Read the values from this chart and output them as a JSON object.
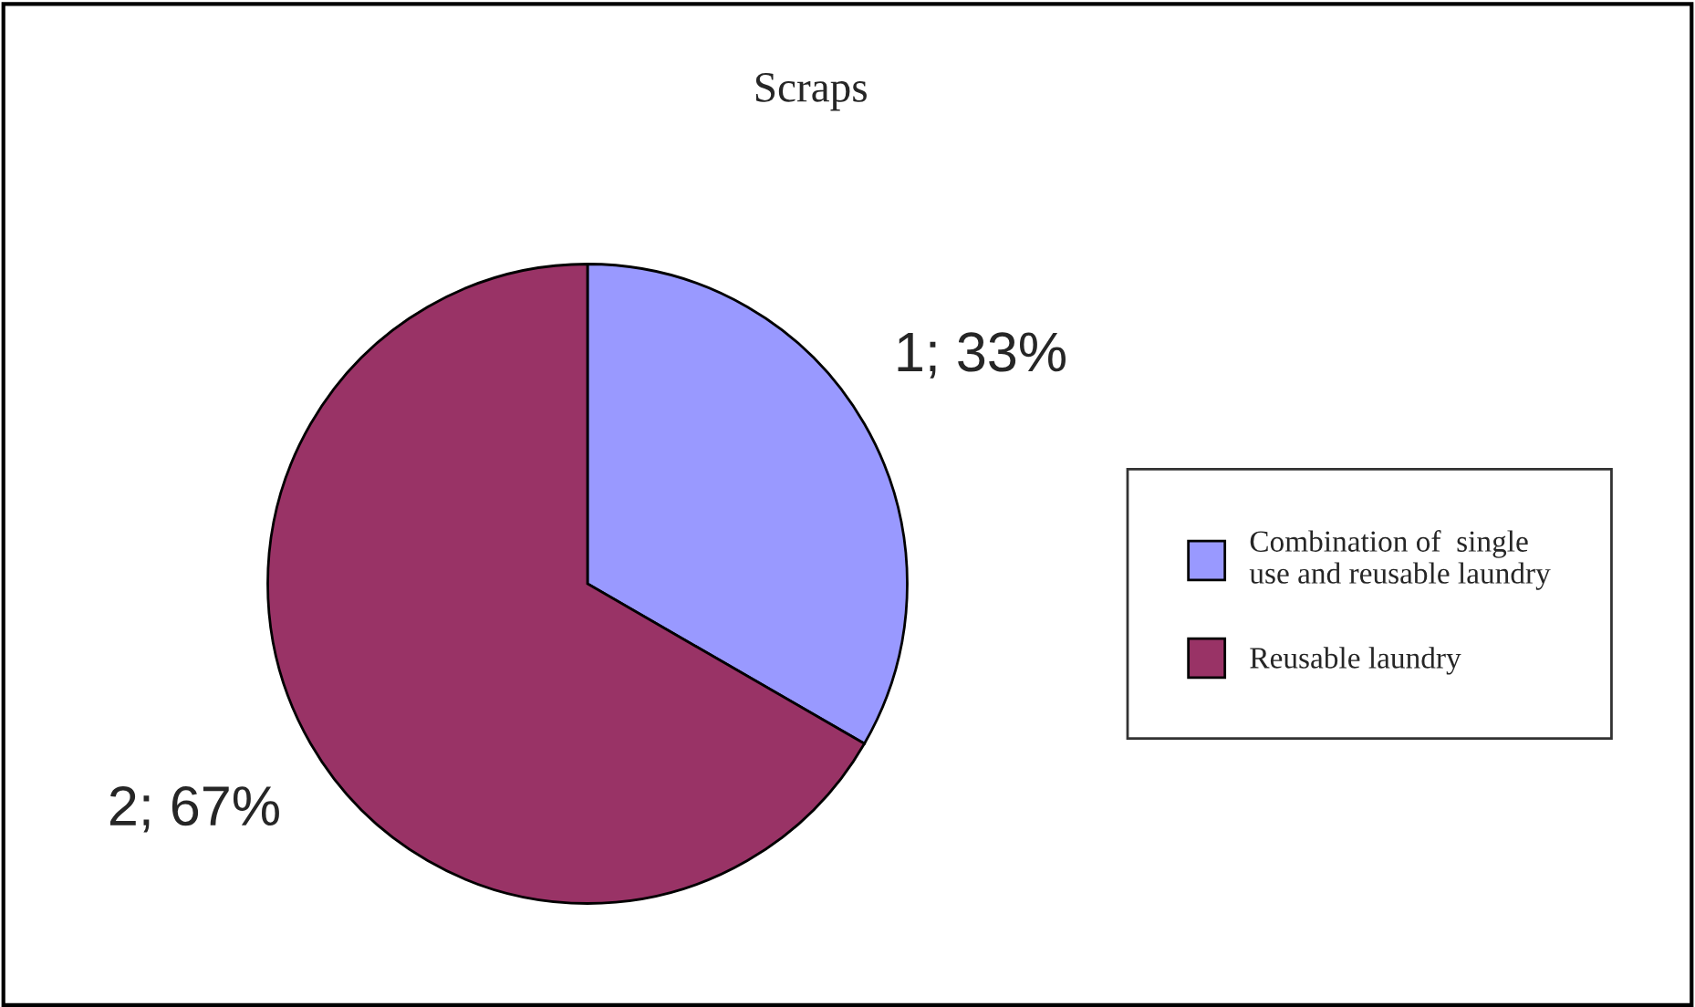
{
  "chart_data": {
    "type": "pie",
    "title": "Scraps",
    "categories": [
      "Combination of  single\nuse and reusable laundry",
      "Reusable laundry"
    ],
    "values": [
      1,
      2
    ],
    "colors": [
      "#9999ff",
      "#993366"
    ],
    "value_labels": [
      "1; 33%",
      "2; 67%"
    ],
    "legend": "right"
  }
}
